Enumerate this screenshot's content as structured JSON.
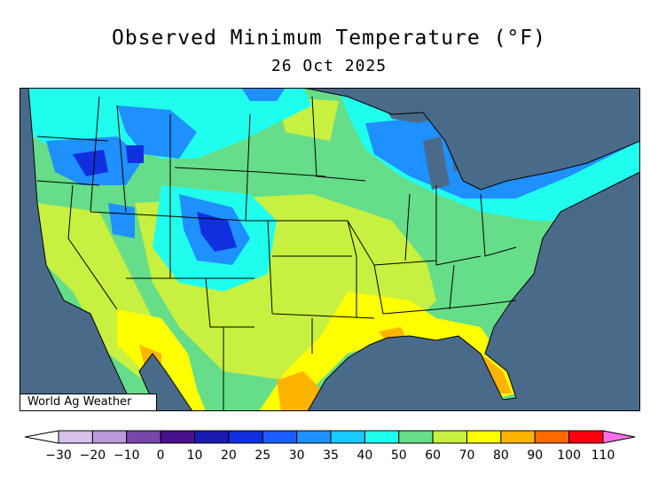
{
  "title": "Observed Minimum Temperature (°F)",
  "date": "26 Oct 2025",
  "credit": "World Ag Weather",
  "colors": {
    "ocean": "#4a6a8a",
    "land_base": "#66dd88",
    "border": "#000000"
  },
  "legend": {
    "ticks": [
      "−30",
      "−20",
      "−10",
      "0",
      "10",
      "20",
      "25",
      "30",
      "35",
      "40",
      "50",
      "60",
      "70",
      "80",
      "90",
      "100",
      "110"
    ],
    "bins": [
      {
        "color": "#d8c0e8"
      },
      {
        "color": "#b898d8"
      },
      {
        "color": "#7848a8"
      },
      {
        "color": "#48128a"
      },
      {
        "color": "#1a1ab0"
      },
      {
        "color": "#1030e0"
      },
      {
        "color": "#1a5cff"
      },
      {
        "color": "#1e90ff"
      },
      {
        "color": "#18c8ff"
      },
      {
        "color": "#20ffee"
      },
      {
        "color": "#66dd88"
      },
      {
        "color": "#c8f040"
      },
      {
        "color": "#ffff00"
      },
      {
        "color": "#ffb400"
      },
      {
        "color": "#ff6a00"
      },
      {
        "color": "#ff0010"
      }
    ],
    "min_arrow_color": "#ffffff",
    "max_arrow_color": "#ff70e8"
  }
}
